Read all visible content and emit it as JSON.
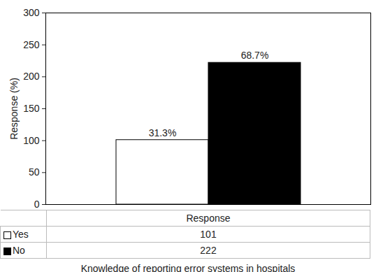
{
  "chart_data": {
    "type": "bar",
    "categories": [
      "Response"
    ],
    "series": [
      {
        "name": "Yes",
        "color": "#ffffff",
        "values": [
          101
        ]
      },
      {
        "name": "No",
        "color": "#000000",
        "values": [
          222
        ]
      }
    ],
    "annotations": [
      {
        "series": "Yes",
        "text": "31.3%"
      },
      {
        "series": "No",
        "text": "68.7%"
      }
    ],
    "ylabel": "Response (%)",
    "caption": "Knowledge of reporting error systems in hospitals",
    "ylim": [
      0,
      300
    ],
    "yticks": [
      0,
      50,
      100,
      150,
      200,
      250,
      300
    ],
    "grid": false
  }
}
